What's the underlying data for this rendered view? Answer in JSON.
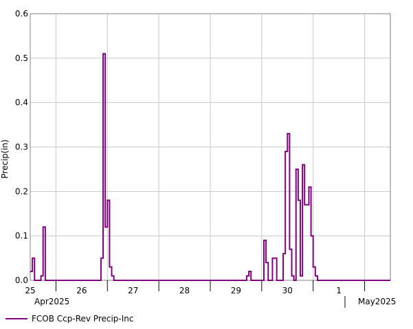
{
  "chart_data": {
    "type": "line",
    "ylabel": "Precip(in)",
    "ylim": [
      0,
      0.6
    ],
    "yticks": [
      "0.0",
      "0.1",
      "0.2",
      "0.3",
      "0.4",
      "0.5",
      "0.6"
    ],
    "x_start": "2025-04-24T12:00",
    "x_end": "2025-05-01T12:00",
    "x_day_labels": [
      "25",
      "26",
      "27",
      "28",
      "29",
      "30",
      "1"
    ],
    "month_labels": [
      "Apr2025",
      "May2025"
    ],
    "grid": true,
    "step": "hours",
    "legend_position": "bottom-left",
    "series": [
      {
        "name": "FCOB Ccp-Rev Precip-Inc",
        "color": "#800080",
        "points": [
          [
            "2025-04-24T12:00",
            0.02
          ],
          [
            "2025-04-24T13:00",
            0.05
          ],
          [
            "2025-04-24T14:00",
            0.0
          ],
          [
            "2025-04-24T16:00",
            0.0
          ],
          [
            "2025-04-24T17:00",
            0.01
          ],
          [
            "2025-04-24T18:00",
            0.12
          ],
          [
            "2025-04-24T19:00",
            0.0
          ],
          [
            "2025-04-25T20:00",
            0.0
          ],
          [
            "2025-04-25T21:00",
            0.05
          ],
          [
            "2025-04-25T22:00",
            0.51
          ],
          [
            "2025-04-25T23:00",
            0.12
          ],
          [
            "2025-04-26T00:00",
            0.18
          ],
          [
            "2025-04-26T01:00",
            0.03
          ],
          [
            "2025-04-26T02:00",
            0.01
          ],
          [
            "2025-04-26T03:00",
            0.0
          ],
          [
            "2025-04-28T16:00",
            0.0
          ],
          [
            "2025-04-28T17:00",
            0.01
          ],
          [
            "2025-04-28T18:00",
            0.02
          ],
          [
            "2025-04-28T19:00",
            0.0
          ],
          [
            "2025-04-29T00:00",
            0.0
          ],
          [
            "2025-04-29T01:00",
            0.09
          ],
          [
            "2025-04-29T02:00",
            0.04
          ],
          [
            "2025-04-29T03:00",
            0.0
          ],
          [
            "2025-04-29T04:00",
            0.0
          ],
          [
            "2025-04-29T05:00",
            0.05
          ],
          [
            "2025-04-29T07:00",
            0.0
          ],
          [
            "2025-04-29T09:00",
            0.0
          ],
          [
            "2025-04-29T10:00",
            0.06
          ],
          [
            "2025-04-29T11:00",
            0.29
          ],
          [
            "2025-04-29T12:00",
            0.33
          ],
          [
            "2025-04-29T13:00",
            0.07
          ],
          [
            "2025-04-29T14:00",
            0.01
          ],
          [
            "2025-04-29T15:00",
            0.0
          ],
          [
            "2025-04-29T16:00",
            0.25
          ],
          [
            "2025-04-29T17:00",
            0.18
          ],
          [
            "2025-04-29T18:00",
            0.01
          ],
          [
            "2025-04-29T19:00",
            0.26
          ],
          [
            "2025-04-29T20:00",
            0.17
          ],
          [
            "2025-04-29T21:00",
            0.17
          ],
          [
            "2025-04-29T22:00",
            0.21
          ],
          [
            "2025-04-29T23:00",
            0.1
          ],
          [
            "2025-04-30T00:00",
            0.03
          ],
          [
            "2025-04-30T01:00",
            0.01
          ],
          [
            "2025-04-30T02:00",
            0.0
          ],
          [
            "2025-05-01T12:00",
            0.0
          ]
        ]
      }
    ]
  }
}
